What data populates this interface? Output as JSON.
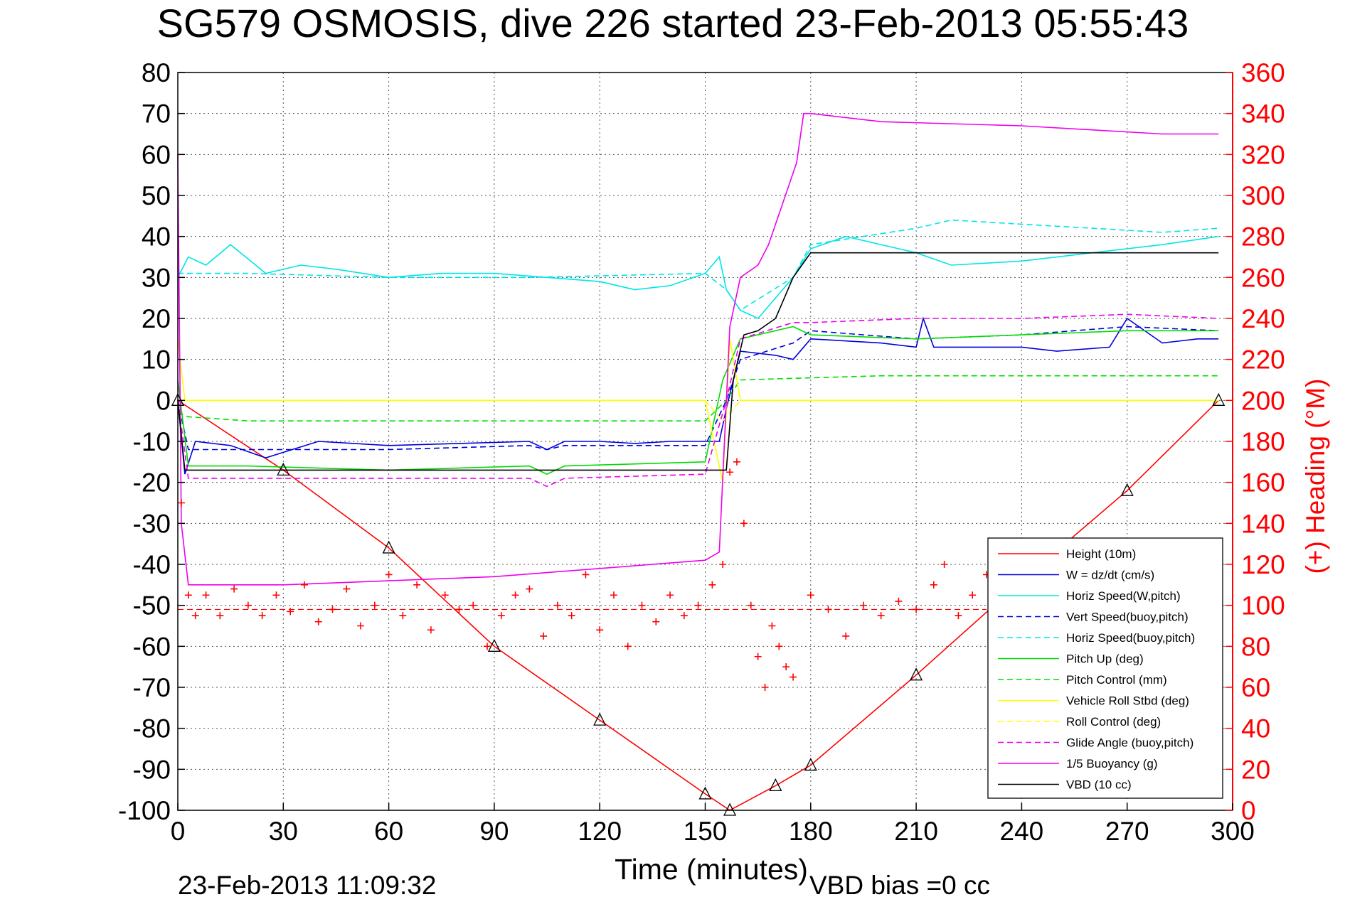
{
  "figure": {
    "title": "SG579 OSMOSIS, dive 226 started 23-Feb-2013 05:55:43",
    "timestamp": "23-Feb-2013 11:09:32",
    "vbd_bias": "VBD bias =0 cc"
  },
  "chart_data": {
    "type": "line",
    "title": "SG579 OSMOSIS, dive 226 started 23-Feb-2013 05:55:43",
    "xlabel": "Time (minutes)",
    "ylabel": "",
    "y2label": "(+) Heading (°M)",
    "xlim": [
      0,
      300
    ],
    "ylim": [
      -100,
      80
    ],
    "y2lim": [
      0,
      360
    ],
    "xticks": [
      0,
      30,
      60,
      90,
      120,
      150,
      180,
      210,
      240,
      270,
      300
    ],
    "yticks": [
      80,
      70,
      60,
      50,
      40,
      30,
      20,
      10,
      0,
      -10,
      -20,
      -30,
      -40,
      -50,
      -60,
      -70,
      -80,
      -90,
      -100
    ],
    "y2ticks": [
      360,
      340,
      320,
      300,
      280,
      260,
      240,
      220,
      200,
      180,
      160,
      140,
      120,
      100,
      80,
      60,
      40,
      20,
      0
    ],
    "grid": true,
    "legend_position": "bottom-right",
    "colors": {
      "red": "#ff0000",
      "blue": "#0000dd",
      "cyan": "#00e5e5",
      "green": "#00dd00",
      "yellow": "#ffff00",
      "magenta": "#ee00ee",
      "black": "#000000"
    },
    "series": [
      {
        "name": "Height (10m)",
        "color": "#ff0000",
        "style": "solid",
        "x": [
          0,
          30,
          60,
          90,
          120,
          150,
          157,
          170,
          180,
          210,
          240,
          270,
          296
        ],
        "y": [
          0,
          -17,
          -36,
          -60,
          -78,
          -96,
          -100,
          -94,
          -89,
          -67,
          -44,
          -22,
          0
        ]
      },
      {
        "name": "W = dz/dt (cm/s)",
        "color": "#0000dd",
        "style": "solid",
        "x": [
          0,
          2,
          5,
          15,
          25,
          40,
          60,
          80,
          100,
          105,
          110,
          120,
          130,
          140,
          150,
          154,
          156,
          160,
          170,
          175,
          180,
          200,
          210,
          212,
          215,
          220,
          240,
          250,
          265,
          270,
          280,
          290,
          296
        ],
        "y": [
          0,
          -18,
          -10,
          -11,
          -14,
          -10,
          -11,
          -10.5,
          -10,
          -12,
          -10,
          -10,
          -10.5,
          -10,
          -10,
          -10,
          -2,
          12,
          11,
          10,
          15,
          14,
          13,
          20,
          13,
          13,
          13,
          12,
          13,
          20,
          14,
          15,
          15
        ]
      },
      {
        "name": "Horiz Speed(W,pitch)",
        "color": "#00e5e5",
        "style": "solid",
        "x": [
          0,
          3,
          8,
          15,
          25,
          35,
          45,
          60,
          75,
          90,
          105,
          120,
          130,
          140,
          150,
          154,
          156,
          160,
          165,
          175,
          180,
          190,
          210,
          220,
          240,
          260,
          280,
          296
        ],
        "y": [
          30,
          35,
          33,
          38,
          31,
          33,
          32,
          30,
          31,
          31,
          30,
          29,
          27,
          28,
          31,
          35,
          27,
          22,
          20,
          30,
          37,
          40,
          36,
          33,
          34,
          36,
          38,
          40
        ]
      },
      {
        "name": "Vert Speed(buoy,pitch)",
        "color": "#0000dd",
        "style": "dashed",
        "x": [
          0,
          3,
          20,
          60,
          100,
          105,
          110,
          150,
          156,
          160,
          175,
          180,
          210,
          240,
          270,
          296
        ],
        "y": [
          0,
          -12,
          -12,
          -12,
          -11,
          -12,
          -11,
          -11,
          0,
          10,
          14,
          17,
          15,
          16,
          18,
          17
        ]
      },
      {
        "name": "Horiz Speed(buoy,pitch)",
        "color": "#00e5e5",
        "style": "dashed",
        "x": [
          0,
          20,
          60,
          100,
          150,
          156,
          160,
          175,
          180,
          210,
          220,
          240,
          260,
          280,
          296
        ],
        "y": [
          31,
          31,
          30,
          30,
          31,
          27,
          22,
          30,
          38,
          42,
          44,
          43,
          42,
          41,
          42
        ]
      },
      {
        "name": "Pitch Up (deg)",
        "color": "#00dd00",
        "style": "solid",
        "x": [
          0,
          3,
          20,
          60,
          100,
          105,
          110,
          150,
          155,
          160,
          175,
          180,
          210,
          240,
          270,
          296
        ],
        "y": [
          5,
          -16,
          -16,
          -17,
          -16,
          -18,
          -16,
          -15,
          5,
          15,
          18,
          16,
          15,
          16,
          17,
          17
        ]
      },
      {
        "name": "Pitch Control (mm)",
        "color": "#00dd00",
        "style": "dashed",
        "x": [
          0,
          3,
          20,
          60,
          100,
          150,
          156,
          160,
          200,
          240,
          296
        ],
        "y": [
          -3,
          -4,
          -5,
          -5,
          -5,
          -5,
          0,
          5,
          6,
          6,
          6
        ]
      },
      {
        "name": "Vehicle Roll Stbd (deg)",
        "color": "#ffff00",
        "style": "solid",
        "x": [
          0,
          2,
          5,
          30,
          60,
          90,
          120,
          150,
          155,
          157,
          160,
          180,
          210,
          240,
          270,
          296
        ],
        "y": [
          15,
          0,
          0,
          0,
          0,
          0,
          0,
          0,
          -20,
          15,
          0,
          0,
          0,
          0,
          0,
          0
        ]
      },
      {
        "name": "Roll Control (deg)",
        "color": "#ffff00",
        "style": "dashed",
        "x": [
          0,
          30,
          60,
          90,
          120,
          150,
          155,
          160,
          200,
          240,
          296
        ],
        "y": [
          0,
          0,
          0,
          0,
          0,
          0,
          -5,
          0,
          0,
          0,
          0
        ]
      },
      {
        "name": "Glide Angle (buoy,pitch)",
        "color": "#ee00ee",
        "style": "dashed",
        "x": [
          0,
          3,
          20,
          60,
          100,
          105,
          110,
          150,
          156,
          160,
          175,
          180,
          210,
          240,
          270,
          296
        ],
        "y": [
          0,
          -19,
          -19,
          -19,
          -19,
          -21,
          -19,
          -18,
          0,
          15,
          19,
          19,
          20,
          20,
          21,
          20
        ]
      },
      {
        "name": "1/5 Buoyancy (g)",
        "color": "#ee00ee",
        "style": "solid",
        "x": [
          0,
          1,
          3,
          30,
          60,
          90,
          120,
          150,
          154,
          157,
          160,
          165,
          168,
          172,
          176,
          178,
          180,
          200,
          240,
          280,
          296
        ],
        "y": [
          60,
          -30,
          -45,
          -45,
          -44,
          -43,
          -41,
          -39,
          -37,
          18,
          30,
          33,
          38,
          48,
          58,
          70,
          70,
          68,
          67,
          65,
          65
        ]
      },
      {
        "name": "VBD (10 cc)",
        "color": "#000000",
        "style": "solid",
        "x": [
          0,
          2,
          30,
          60,
          90,
          120,
          150,
          156,
          158,
          161,
          165,
          170,
          172,
          175,
          180,
          210,
          240,
          296
        ],
        "y": [
          0,
          -17,
          -17,
          -17,
          -17,
          -17,
          -17,
          -17,
          5,
          16,
          17,
          20,
          24,
          30,
          36,
          36,
          36,
          36
        ]
      }
    ],
    "heading": {
      "name": "Heading (deg M, right axis)",
      "color": "#ff0000",
      "style": "markers +",
      "mean": 98,
      "x": [
        1,
        3,
        5,
        8,
        12,
        16,
        20,
        24,
        28,
        32,
        36,
        40,
        44,
        48,
        52,
        56,
        60,
        64,
        68,
        72,
        76,
        80,
        84,
        88,
        92,
        96,
        100,
        104,
        108,
        112,
        116,
        120,
        124,
        128,
        132,
        136,
        140,
        144,
        148,
        152,
        155,
        157,
        159,
        161,
        163,
        165,
        167,
        169,
        171,
        173,
        175,
        180,
        185,
        190,
        195,
        200,
        205,
        210,
        215,
        218,
        222,
        226,
        230
      ],
      "y": [
        150,
        105,
        95,
        105,
        95,
        108,
        100,
        95,
        105,
        97,
        110,
        92,
        98,
        108,
        90,
        100,
        115,
        95,
        110,
        88,
        105,
        98,
        100,
        80,
        95,
        105,
        108,
        85,
        100,
        95,
        115,
        88,
        105,
        80,
        100,
        92,
        105,
        95,
        100,
        110,
        120,
        165,
        170,
        140,
        100,
        75,
        60,
        90,
        80,
        70,
        65,
        105,
        98,
        85,
        100,
        95,
        102,
        98,
        110,
        120,
        95,
        105,
        115
      ]
    }
  }
}
